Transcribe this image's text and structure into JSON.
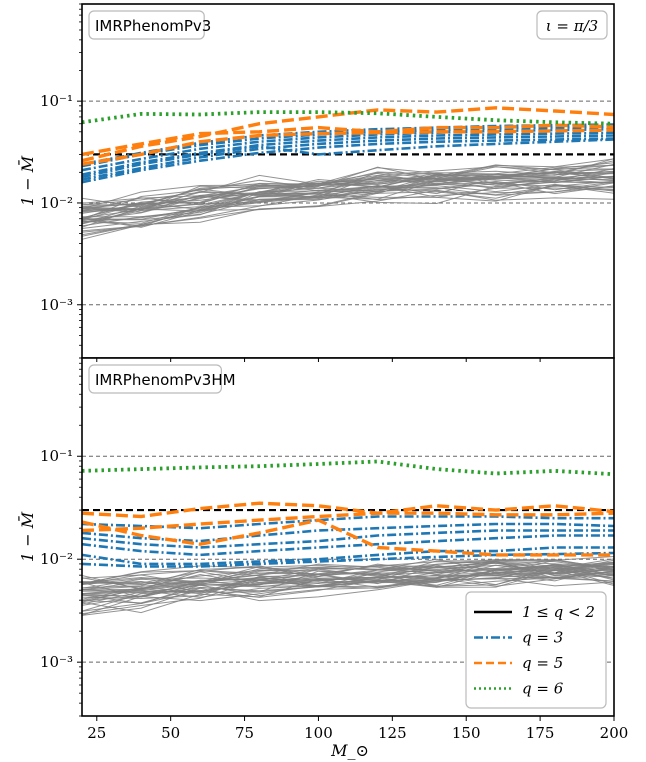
{
  "chart_data": {
    "type": "line",
    "x_label": "M_⊙",
    "x_ticks": [
      25,
      50,
      75,
      100,
      125,
      150,
      175,
      200
    ],
    "x_range": [
      20,
      200
    ],
    "y_scale": "log",
    "grid": "horizontal dashed at decades",
    "legend_placement": "lower-right of bottom panel",
    "colors": {
      "q_1_2": "#000000",
      "q3": "#1f77b4",
      "q5": "#ff7f0e",
      "q6": "#2ca02c",
      "background_curves": "#808080",
      "threshold": "#000000"
    },
    "legend": [
      {
        "key": "q12",
        "label": "1 ≤ q < 2",
        "style": "solid",
        "color": "#000000"
      },
      {
        "key": "q3",
        "label": "q = 3",
        "style": "dashdot",
        "color": "#1f77b4"
      },
      {
        "key": "q5",
        "label": "q = 5",
        "style": "dashed",
        "color": "#ff7f0e"
      },
      {
        "key": "q6",
        "label": "q = 6",
        "style": "dotted",
        "color": "#2ca02c"
      }
    ],
    "panels": [
      {
        "name": "IMRPhenomPv3",
        "annotation": "ι = π/3",
        "y_label": "1 − M̄",
        "y_range": [
          0.0003,
          0.9
        ],
        "y_ticks": [
          {
            "value": 0.001,
            "label": "10⁻³"
          },
          {
            "value": 0.01,
            "label": "10⁻²"
          },
          {
            "value": 0.1,
            "label": "10⁻¹"
          }
        ],
        "threshold": 0.03,
        "x": [
          20,
          40,
          60,
          80,
          100,
          120,
          140,
          160,
          180,
          200
        ],
        "q12_band": {
          "low": [
            0.005,
            0.006,
            0.0075,
            0.009,
            0.01,
            0.011,
            0.0115,
            0.012,
            0.0125,
            0.013
          ],
          "high": [
            0.0095,
            0.011,
            0.0135,
            0.016,
            0.018,
            0.02,
            0.021,
            0.022,
            0.0225,
            0.023
          ],
          "count": 40
        },
        "q3": [
          [
            0.017,
            0.022,
            0.028,
            0.034,
            0.038,
            0.041,
            0.043,
            0.044,
            0.045,
            0.046
          ],
          [
            0.019,
            0.025,
            0.031,
            0.037,
            0.041,
            0.044,
            0.046,
            0.047,
            0.048,
            0.049
          ],
          [
            0.021,
            0.027,
            0.034,
            0.04,
            0.044,
            0.047,
            0.049,
            0.051,
            0.052,
            0.053
          ],
          [
            0.023,
            0.03,
            0.037,
            0.043,
            0.047,
            0.05,
            0.052,
            0.054,
            0.055,
            0.056
          ],
          [
            0.016,
            0.021,
            0.026,
            0.031,
            0.035,
            0.038,
            0.04,
            0.041,
            0.042,
            0.043
          ],
          [
            0.024,
            0.031,
            0.039,
            0.046,
            0.05,
            0.053,
            0.055,
            0.057,
            0.058,
            0.059
          ],
          [
            0.018,
            0.024,
            0.03,
            0.036,
            0.03,
            0.033,
            0.036,
            0.038,
            0.04,
            0.042
          ]
        ],
        "q5": [
          [
            0.026,
            0.036,
            0.045,
            0.06,
            0.07,
            0.082,
            0.078,
            0.086,
            0.08,
            0.074
          ],
          [
            0.03,
            0.038,
            0.048,
            0.05,
            0.055,
            0.05,
            0.055,
            0.055,
            0.058,
            0.056
          ],
          [
            0.024,
            0.03,
            0.04,
            0.046,
            0.048,
            0.049,
            0.05,
            0.05,
            0.051,
            0.052
          ]
        ],
        "q6": [
          [
            0.062,
            0.075,
            0.074,
            0.078,
            0.078,
            0.076,
            0.07,
            0.065,
            0.062,
            0.06
          ]
        ]
      },
      {
        "name": "IMRPhenomPv3HM",
        "annotation": "",
        "y_label": "1 − M̄",
        "y_range": [
          0.0003,
          0.9
        ],
        "y_ticks": [
          {
            "value": 0.001,
            "label": "10⁻³"
          },
          {
            "value": 0.01,
            "label": "10⁻²"
          },
          {
            "value": 0.1,
            "label": "10⁻¹"
          }
        ],
        "threshold": 0.03,
        "x": [
          20,
          40,
          60,
          80,
          100,
          120,
          140,
          160,
          180,
          200
        ],
        "q12_band": {
          "low": [
            0.0032,
            0.0036,
            0.0042,
            0.0048,
            0.0052,
            0.0056,
            0.006,
            0.0062,
            0.0064,
            0.0066
          ],
          "high": [
            0.0072,
            0.0075,
            0.0078,
            0.0082,
            0.0085,
            0.0088,
            0.009,
            0.0092,
            0.0094,
            0.0096
          ],
          "count": 40
        },
        "q3": [
          [
            0.018,
            0.016,
            0.015,
            0.017,
            0.019,
            0.02,
            0.021,
            0.022,
            0.022,
            0.021
          ],
          [
            0.014,
            0.012,
            0.011,
            0.012,
            0.013,
            0.014,
            0.015,
            0.016,
            0.017,
            0.017
          ],
          [
            0.011,
            0.009,
            0.009,
            0.0095,
            0.01,
            0.011,
            0.012,
            0.012,
            0.013,
            0.013
          ],
          [
            0.022,
            0.021,
            0.02,
            0.022,
            0.024,
            0.026,
            0.026,
            0.026,
            0.025,
            0.025
          ],
          [
            0.009,
            0.0085,
            0.0085,
            0.009,
            0.0095,
            0.01,
            0.0105,
            0.011,
            0.0112,
            0.0115
          ],
          [
            0.016,
            0.014,
            0.013,
            0.014,
            0.015,
            0.017,
            0.018,
            0.019,
            0.019,
            0.019
          ]
        ],
        "q5": [
          [
            0.028,
            0.026,
            0.031,
            0.035,
            0.033,
            0.028,
            0.033,
            0.03,
            0.033,
            0.029
          ],
          [
            0.023,
            0.017,
            0.014,
            0.018,
            0.024,
            0.013,
            0.012,
            0.011,
            0.011,
            0.011
          ],
          [
            0.019,
            0.02,
            0.022,
            0.024,
            0.026,
            0.028,
            0.028,
            0.027,
            0.027,
            0.028
          ]
        ],
        "q6": [
          [
            0.072,
            0.075,
            0.078,
            0.08,
            0.084,
            0.089,
            0.075,
            0.068,
            0.072,
            0.067
          ]
        ]
      }
    ]
  }
}
